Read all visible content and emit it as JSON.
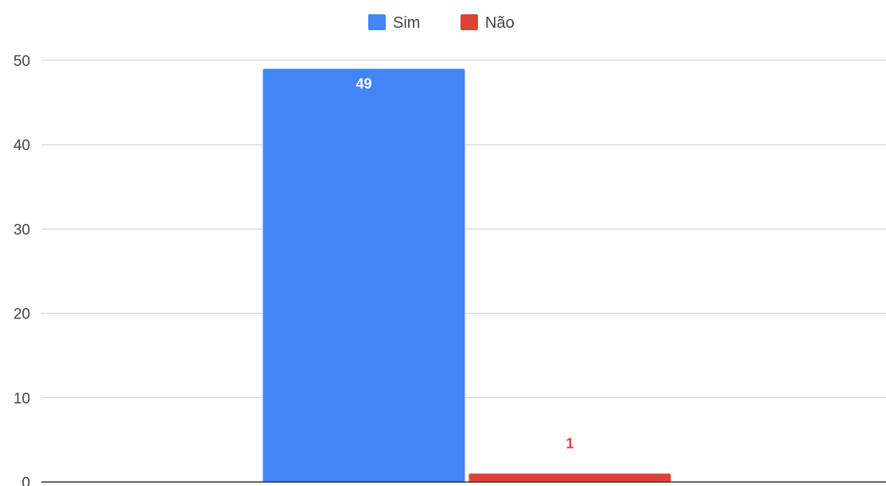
{
  "chart_data": {
    "type": "bar",
    "categories": [
      ""
    ],
    "series": [
      {
        "name": "Sim",
        "values": [
          49
        ],
        "color": "#4285f4",
        "label_color": "#ffffff",
        "label_position": "inside"
      },
      {
        "name": "Não",
        "values": [
          1
        ],
        "color": "#db4437",
        "label_color": "#db4437",
        "label_position": "above"
      }
    ],
    "title": "",
    "xlabel": "",
    "ylabel": "",
    "ylim": [
      0,
      50
    ],
    "yticks": [
      0,
      10,
      20,
      30,
      40,
      50
    ],
    "grid": true,
    "legend_position": "top"
  }
}
